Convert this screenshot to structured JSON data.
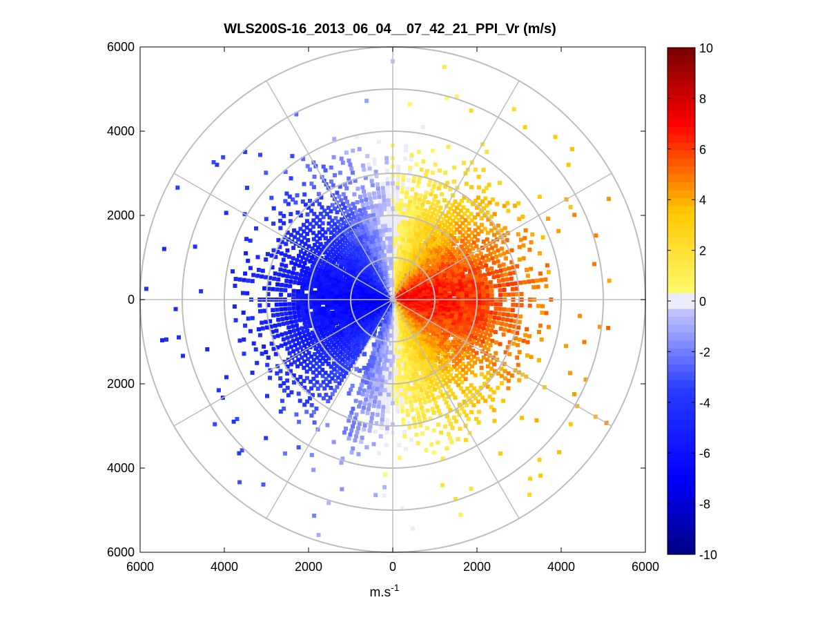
{
  "chart_data": {
    "type": "polar-ppi",
    "title": "WLS200S-16_2013_06_04__07_42_21_PPI_Vr (m/s)",
    "xlabel": "m.s",
    "xlabel_exponent": "-1",
    "xlim": [
      -6000,
      6000
    ],
    "ylim": [
      -6000,
      6000
    ],
    "x_tick_values": [
      -6000,
      -4000,
      -2000,
      0,
      2000,
      4000,
      6000
    ],
    "x_tick_labels": [
      "6000",
      "4000",
      "2000",
      "0",
      "2000",
      "4000",
      "6000"
    ],
    "y_tick_values": [
      6000,
      4000,
      2000,
      0,
      -2000,
      -4000,
      -6000
    ],
    "y_tick_labels": [
      "6000",
      "4000",
      "2000",
      "0",
      "2000",
      "4000",
      "6000"
    ],
    "range_rings": [
      1000,
      2000,
      3000,
      4000,
      5000,
      6000
    ],
    "spoke_angles_deg": [
      0,
      30,
      60,
      90,
      120,
      150,
      180,
      210,
      240,
      270,
      300,
      330
    ],
    "colorbar": {
      "min": -10,
      "max": 10,
      "tick_values": [
        10,
        8,
        6,
        4,
        2,
        0,
        -2,
        -4,
        -6,
        -8,
        -10
      ],
      "tick_labels": [
        "10",
        "8",
        "6",
        "4",
        "2",
        "0",
        "-2",
        "-4",
        "-6",
        "-8",
        "-10"
      ]
    },
    "wind_field": {
      "main_extent_m": 3800,
      "max_extent_m": 5900,
      "peak_velocity_ms": 7.5,
      "toward_sector": "west (negative radial velocity)",
      "away_sector": "east (positive radial velocity)"
    }
  }
}
